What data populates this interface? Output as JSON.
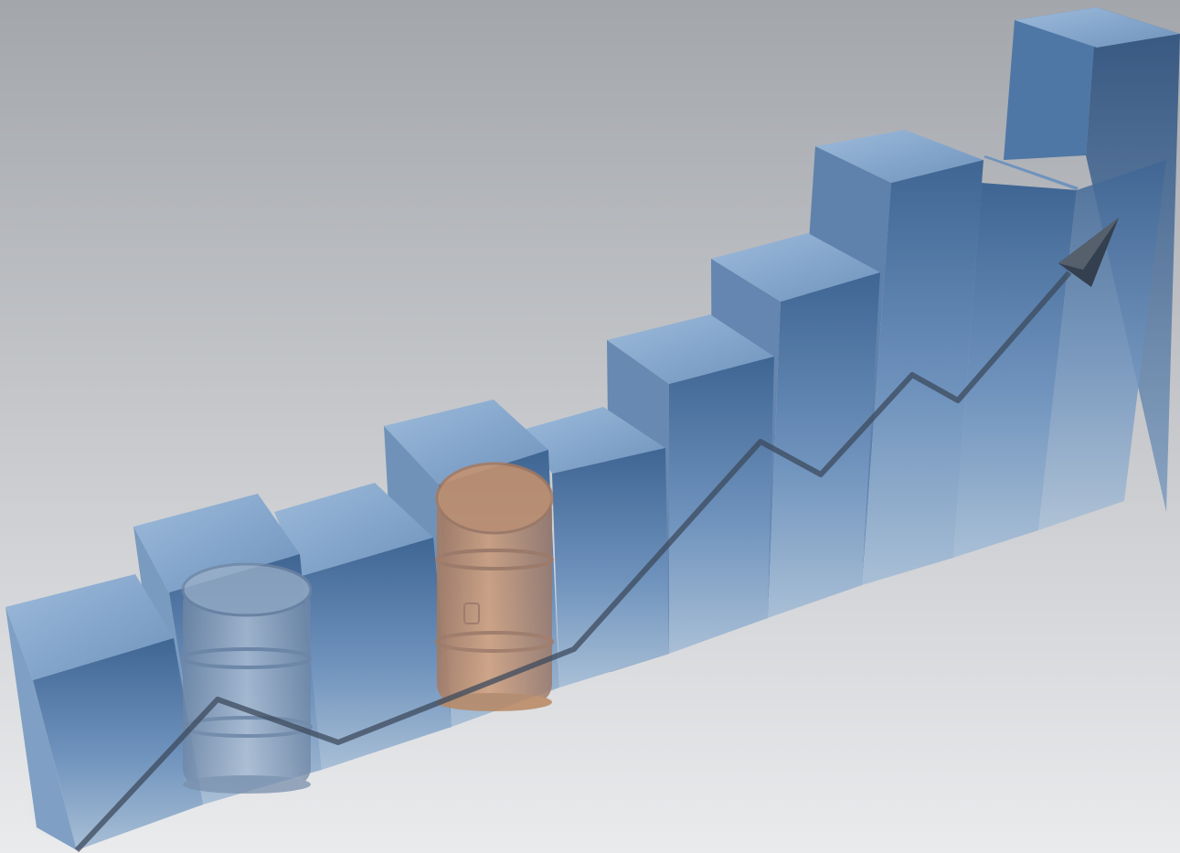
{
  "image": {
    "subject": "3d-bar-chart-with-oil-barrels",
    "colors": {
      "background_top": "#a3a6ab",
      "background_bottom": "#eaebed",
      "bar_face": "#6f93bd",
      "bar_top": "#8fb0d3",
      "bar_side": "#56779f",
      "trend_line": "#3c4a5c",
      "barrel_steel": "#8ea3bd",
      "barrel_copper": "#c9936c"
    },
    "icons": [
      "trend-arrow-icon",
      "oil-barrel-icon"
    ]
  }
}
